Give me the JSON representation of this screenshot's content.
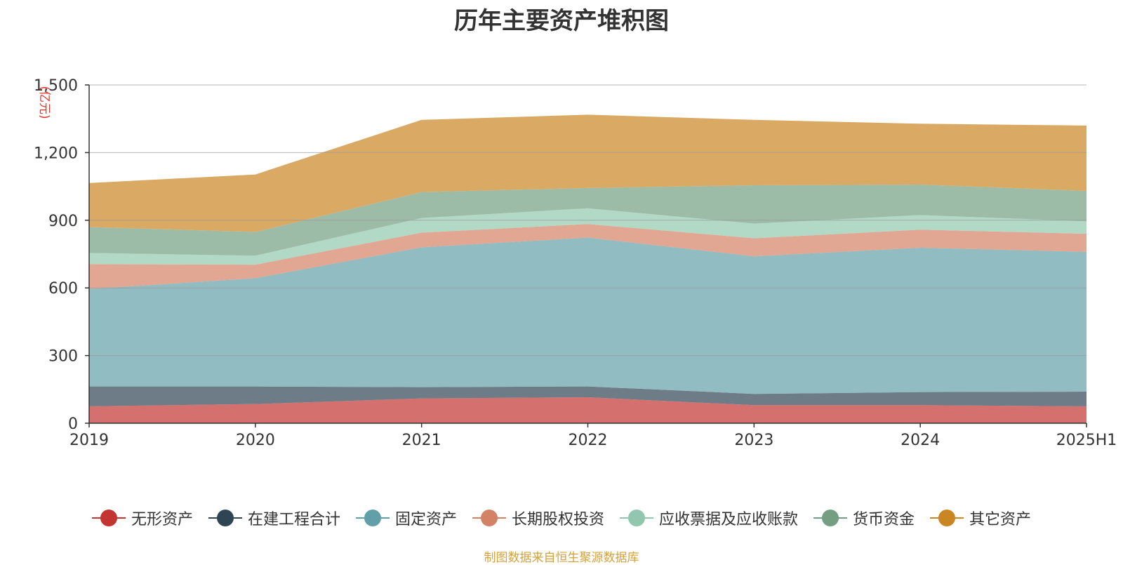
{
  "chart_data": {
    "type": "area",
    "stacked": true,
    "title": "历年主要资产堆积图",
    "unit_label": "(亿元)",
    "categories": [
      "2019",
      "2020",
      "2021",
      "2022",
      "2023",
      "2024",
      "2025H1"
    ],
    "ylim": [
      0,
      1500
    ],
    "yticks": [
      0,
      300,
      600,
      900,
      1200,
      1500
    ],
    "ytick_labels": [
      "0",
      "300",
      "600",
      "900",
      "1,200",
      "1,500"
    ],
    "grid": true,
    "legend_position": "bottom",
    "series": [
      {
        "name": "无形资产",
        "color": "#c23531",
        "values": [
          75,
          85,
          110,
          115,
          80,
          80,
          75
        ]
      },
      {
        "name": "在建工程合计",
        "color": "#2f4554",
        "values": [
          88,
          78,
          50,
          48,
          50,
          58,
          65
        ]
      },
      {
        "name": "固定资产",
        "color": "#61a0a8",
        "values": [
          432,
          480,
          620,
          660,
          610,
          640,
          620
        ]
      },
      {
        "name": "长期股权投资",
        "color": "#d48265",
        "values": [
          110,
          60,
          65,
          60,
          80,
          80,
          80
        ]
      },
      {
        "name": "应收票据及应收账款",
        "color": "#91c7ae",
        "values": [
          50,
          40,
          65,
          70,
          65,
          65,
          55
        ]
      },
      {
        "name": "货币资金",
        "color": "#749f83",
        "values": [
          115,
          105,
          115,
          90,
          170,
          135,
          135
        ]
      },
      {
        "name": "其它资产",
        "color": "#ca8622",
        "values": [
          195,
          255,
          320,
          325,
          290,
          270,
          290
        ]
      }
    ]
  },
  "source_text": "制图数据来自恒生聚源数据库"
}
